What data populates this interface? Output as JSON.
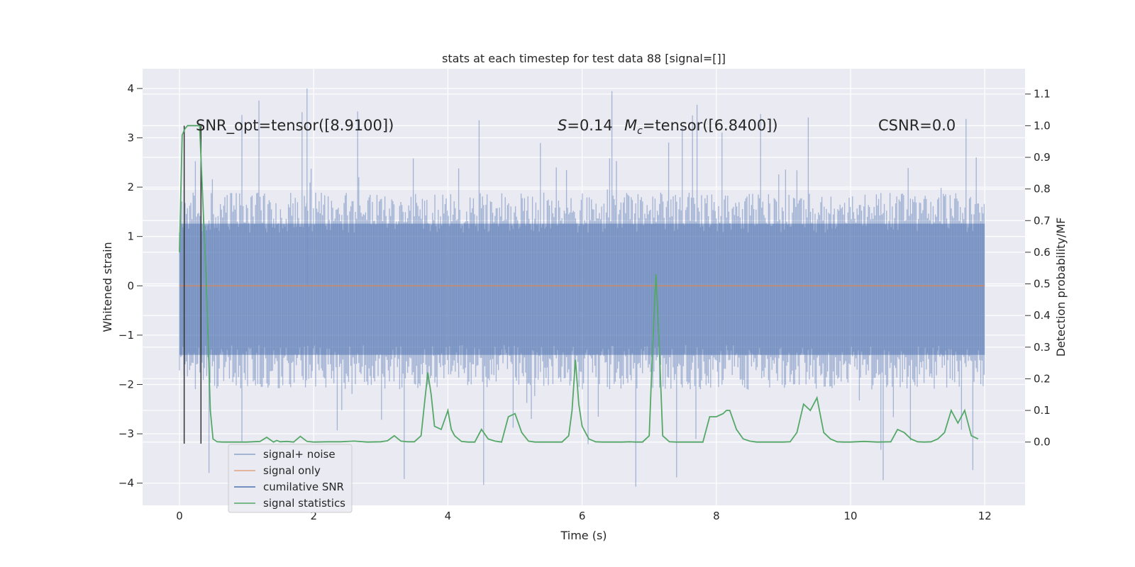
{
  "chart_data": {
    "type": "line",
    "title": "stats at each timestep for test data 88 [signal=[]]",
    "xlabel": "Time (s)",
    "ylabel": "Whitened strain",
    "ylabel_right": "Detection probability/MF",
    "xlim": [
      -0.55,
      12.6
    ],
    "ylim": [
      -4.45,
      4.4
    ],
    "ylim_right": [
      -0.2,
      1.18
    ],
    "x_ticks": [
      0,
      2,
      4,
      6,
      8,
      10,
      12
    ],
    "y_ticks": [
      -4,
      -3,
      -2,
      -1,
      0,
      1,
      2,
      3,
      4
    ],
    "y_ticks_right": [
      0.0,
      0.1,
      0.2,
      0.3,
      0.4,
      0.5,
      0.6,
      0.7,
      0.8,
      0.9,
      1.0,
      1.1
    ],
    "grid": true,
    "legend_position": "lower-left",
    "annotations": {
      "snr_opt": "SNR_opt=tensor([8.9100])",
      "s_stat": "=0.14",
      "s_symbol": "S",
      "mc_symbol": "M",
      "mc_sub": "c",
      "mc_value": "=tensor([6.8400])",
      "csnr": "CSNR=0.0"
    },
    "colors": {
      "signal_noise": "#4c72b0",
      "signal_only": "#dd8452",
      "cumulative_snr": "#4c72b0",
      "signal_statistics": "#55a868",
      "vlines": "#333333",
      "background": "#eaeaf2",
      "grid": "#ffffff"
    },
    "series": [
      {
        "name": "signal+ noise",
        "axis": "left",
        "x_range": [
          0,
          12
        ],
        "envelope_typical": [
          -2.0,
          1.8
        ],
        "envelope_peaks": [
          -4.07,
          4.0
        ],
        "note_shape": "dense noise"
      },
      {
        "name": "signal only",
        "axis": "left",
        "x": [
          0,
          12
        ],
        "y": [
          0,
          0
        ]
      },
      {
        "name": "cumilative SNR",
        "axis": "left",
        "x": [],
        "y": []
      },
      {
        "name": "signal statistics",
        "axis": "right",
        "x": [
          0.0,
          0.04,
          0.08,
          0.12,
          0.2,
          0.3,
          0.34,
          0.4,
          0.46,
          0.5,
          0.56,
          0.64,
          0.8,
          1.0,
          1.2,
          1.3,
          1.4,
          1.45,
          1.5,
          1.6,
          1.7,
          1.8,
          1.9,
          2.0,
          2.2,
          2.4,
          2.6,
          2.8,
          3.0,
          3.1,
          3.2,
          3.3,
          3.4,
          3.5,
          3.6,
          3.65,
          3.7,
          3.75,
          3.8,
          3.9,
          4.0,
          4.05,
          4.1,
          4.2,
          4.3,
          4.4,
          4.5,
          4.6,
          4.7,
          4.8,
          4.9,
          5.0,
          5.1,
          5.2,
          5.3,
          5.4,
          5.6,
          5.7,
          5.8,
          5.85,
          5.9,
          5.95,
          6.0,
          6.1,
          6.2,
          6.3,
          6.4,
          6.5,
          6.6,
          6.7,
          6.8,
          6.9,
          7.0,
          7.05,
          7.1,
          7.15,
          7.2,
          7.3,
          7.4,
          7.6,
          7.8,
          7.9,
          8.0,
          8.1,
          8.15,
          8.2,
          8.3,
          8.4,
          8.5,
          8.6,
          8.8,
          9.0,
          9.1,
          9.2,
          9.3,
          9.4,
          9.5,
          9.6,
          9.7,
          9.8,
          9.9,
          10.0,
          10.2,
          10.4,
          10.6,
          10.7,
          10.8,
          10.9,
          11.0,
          11.1,
          11.2,
          11.3,
          11.4,
          11.5,
          11.6,
          11.7,
          11.8,
          11.9
        ],
        "y": [
          0.6,
          0.97,
          0.99,
          1.0,
          1.0,
          1.0,
          0.8,
          0.5,
          0.1,
          0.01,
          0.001,
          0.0,
          0.0,
          0.0,
          0.002,
          0.015,
          0.0,
          0.005,
          0.001,
          0.002,
          0.0,
          0.018,
          0.002,
          0.0,
          0.001,
          0.001,
          0.003,
          0.0,
          0.001,
          0.004,
          0.02,
          0.003,
          0.001,
          0.001,
          0.02,
          0.12,
          0.22,
          0.15,
          0.05,
          0.04,
          0.1,
          0.04,
          0.02,
          0.002,
          0.0,
          0.0,
          0.04,
          0.01,
          0.003,
          0.0,
          0.08,
          0.09,
          0.03,
          0.003,
          0.0,
          0.0,
          0.0,
          0.0,
          0.02,
          0.1,
          0.26,
          0.12,
          0.05,
          0.01,
          0.001,
          0.0,
          0.0,
          0.0,
          0.0,
          0.001,
          0.0,
          0.0,
          0.02,
          0.3,
          0.53,
          0.3,
          0.02,
          0.001,
          0.0,
          0.0,
          0.0,
          0.08,
          0.08,
          0.09,
          0.1,
          0.1,
          0.04,
          0.01,
          0.003,
          0.0,
          0.0,
          0.0,
          0.001,
          0.03,
          0.12,
          0.1,
          0.14,
          0.03,
          0.01,
          0.001,
          0.0,
          0.0,
          0.002,
          0.0,
          0.001,
          0.04,
          0.03,
          0.01,
          0.001,
          0.0,
          0.001,
          0.01,
          0.03,
          0.1,
          0.06,
          0.1,
          0.02,
          0.01
        ]
      }
    ],
    "vlines": [
      0.07,
      0.32
    ]
  },
  "legend": {
    "items": [
      {
        "label": "signal+ noise",
        "color": "#4c72b0",
        "alpha": 0.6
      },
      {
        "label": "signal only",
        "color": "#dd8452",
        "alpha": 0.7
      },
      {
        "label": "cumilative SNR",
        "color": "#4c72b0",
        "alpha": 1.0
      },
      {
        "label": "signal statistics",
        "color": "#55a868",
        "alpha": 1.0
      }
    ]
  }
}
